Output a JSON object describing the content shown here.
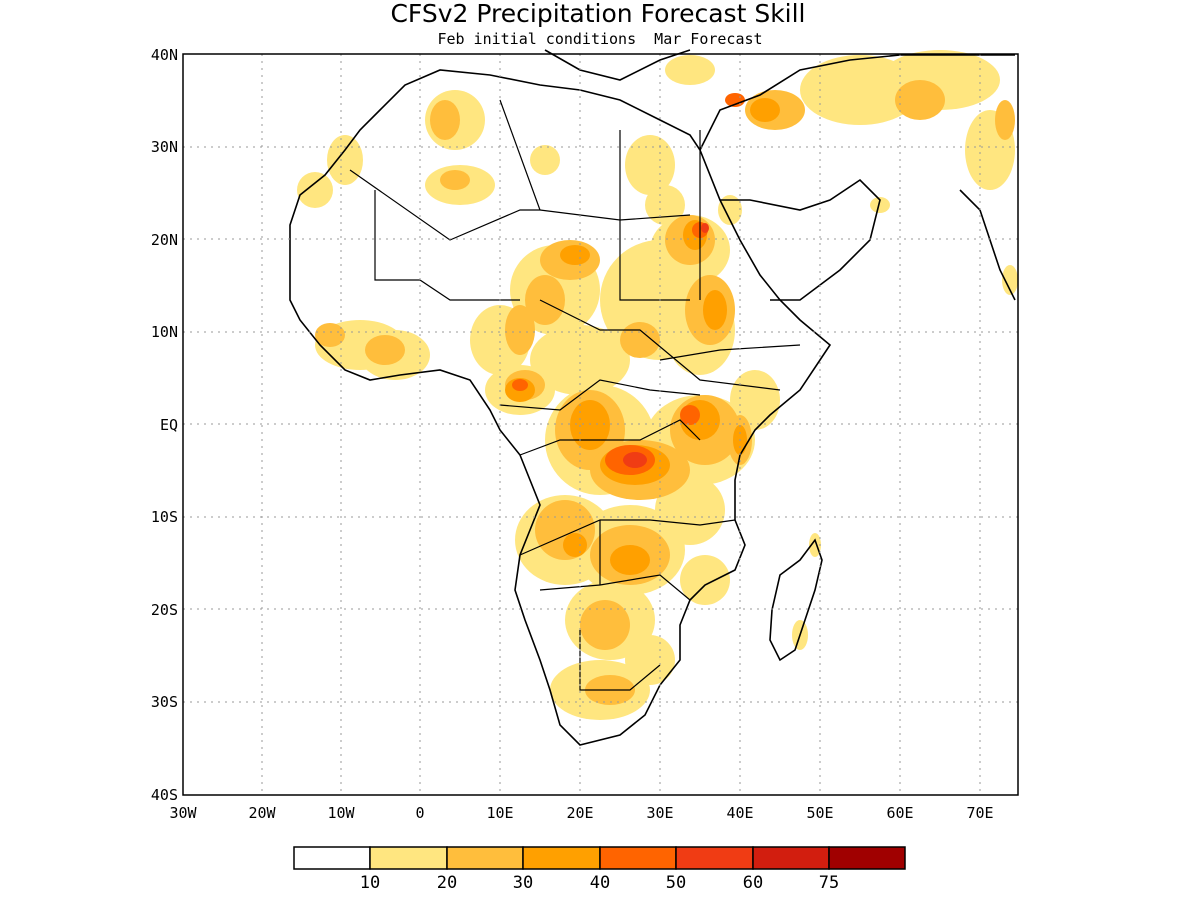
{
  "title": "CFSv2 Precipitation Forecast Skill",
  "subtitle": "Feb initial conditions  Mar Forecast",
  "map": {
    "lat_ticks": [
      "40N",
      "30N",
      "20N",
      "10N",
      "EQ",
      "10S",
      "20S",
      "30S",
      "40S"
    ],
    "lon_ticks": [
      "30W",
      "20W",
      "10W",
      "0",
      "10E",
      "20E",
      "30E",
      "40E",
      "50E",
      "60E",
      "70E"
    ],
    "lon_range": [
      -30,
      75
    ],
    "lat_range": [
      -40,
      40
    ],
    "grid": "dotted"
  },
  "colorbar": {
    "labels": [
      "10",
      "20",
      "30",
      "40",
      "50",
      "60",
      "75"
    ],
    "colors": [
      "#ffffff",
      "#ffe680",
      "#ffbe3c",
      "#ffa000",
      "#ff6400",
      "#f03c14",
      "#d21e0f",
      "#a00000"
    ]
  }
}
